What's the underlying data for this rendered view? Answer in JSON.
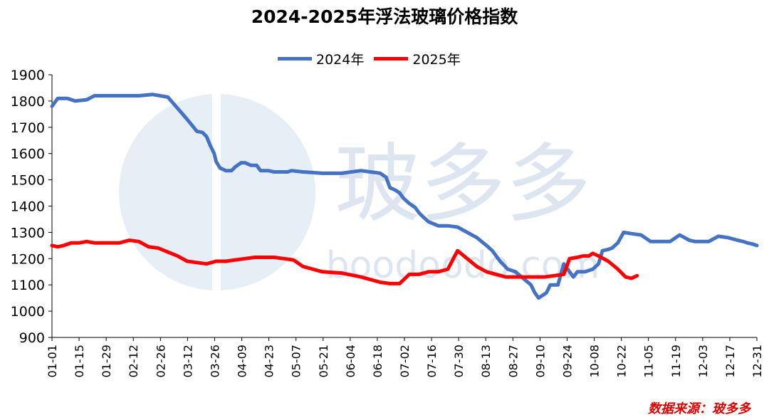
{
  "chart_data": {
    "type": "line",
    "title": "2024-2025年浮法玻璃价格指数",
    "xlabel": "",
    "ylabel": "",
    "ylim": [
      900,
      1900
    ],
    "yticks": [
      900,
      1000,
      1100,
      1200,
      1300,
      1400,
      1500,
      1600,
      1700,
      1800,
      1900
    ],
    "x_tick_labels": [
      "01-01",
      "01-15",
      "01-29",
      "02-12",
      "02-26",
      "03-12",
      "03-26",
      "04-09",
      "04-23",
      "05-07",
      "05-21",
      "06-04",
      "06-18",
      "07-02",
      "07-16",
      "07-30",
      "08-13",
      "08-27",
      "09-10",
      "09-24",
      "10-08",
      "10-22",
      "11-05",
      "11-19",
      "12-03",
      "12-17",
      "12-31"
    ],
    "x_range_days": [
      0,
      365
    ],
    "grid": false,
    "legend_position": "top-center",
    "series": [
      {
        "name": "2024年",
        "color": "#4472c4",
        "x": [
          0,
          3,
          8,
          12,
          18,
          22,
          26,
          33,
          40,
          45,
          52,
          60,
          70,
          75,
          78,
          80,
          82,
          84,
          85,
          87,
          90,
          93,
          95,
          98,
          100,
          103,
          106,
          108,
          110,
          112,
          115,
          118,
          122,
          124,
          130,
          140,
          150,
          160,
          170,
          173,
          175,
          178,
          180,
          182,
          185,
          188,
          190,
          192,
          195,
          200,
          205,
          210,
          215,
          220,
          225,
          228,
          232,
          236,
          240,
          244,
          248,
          250,
          252,
          254,
          256,
          258,
          260,
          262,
          265,
          268,
          270,
          272,
          276,
          280,
          283,
          285,
          288,
          290,
          293,
          296,
          300,
          305,
          310,
          315,
          320,
          325,
          330,
          333,
          335,
          340,
          345,
          350,
          355,
          358,
          360,
          363,
          365
        ],
        "values": [
          1780,
          1810,
          1810,
          1800,
          1805,
          1820,
          1820,
          1820,
          1820,
          1820,
          1825,
          1815,
          1730,
          1685,
          1680,
          1665,
          1630,
          1600,
          1570,
          1545,
          1535,
          1535,
          1550,
          1565,
          1565,
          1555,
          1555,
          1535,
          1535,
          1535,
          1530,
          1530,
          1530,
          1535,
          1530,
          1525,
          1525,
          1535,
          1525,
          1510,
          1470,
          1460,
          1450,
          1430,
          1410,
          1395,
          1375,
          1360,
          1340,
          1325,
          1325,
          1320,
          1300,
          1280,
          1250,
          1230,
          1190,
          1160,
          1150,
          1125,
          1100,
          1070,
          1050,
          1060,
          1070,
          1100,
          1100,
          1100,
          1180,
          1150,
          1130,
          1150,
          1150,
          1160,
          1180,
          1230,
          1235,
          1240,
          1260,
          1300,
          1295,
          1290,
          1265,
          1265,
          1265,
          1290,
          1270,
          1265,
          1265,
          1265,
          1285,
          1280,
          1270,
          1265,
          1260,
          1255,
          1250
        ]
      },
      {
        "name": "2025年",
        "color": "#ff0000",
        "x": [
          0,
          3,
          6,
          10,
          14,
          18,
          22,
          26,
          30,
          35,
          40,
          45,
          50,
          55,
          60,
          65,
          70,
          75,
          80,
          85,
          90,
          95,
          100,
          105,
          110,
          115,
          120,
          125,
          130,
          140,
          150,
          160,
          170,
          175,
          180,
          185,
          190,
          195,
          200,
          205,
          210,
          215,
          220,
          225,
          230,
          235,
          240,
          242,
          245,
          248,
          250,
          252,
          255,
          260,
          265,
          268,
          272,
          275,
          278,
          280,
          283,
          288,
          293,
          297,
          300,
          303
        ],
        "values": [
          1250,
          1245,
          1250,
          1260,
          1260,
          1265,
          1260,
          1260,
          1260,
          1260,
          1270,
          1265,
          1245,
          1240,
          1225,
          1210,
          1190,
          1185,
          1180,
          1190,
          1190,
          1195,
          1200,
          1205,
          1205,
          1205,
          1200,
          1195,
          1170,
          1150,
          1145,
          1130,
          1110,
          1105,
          1105,
          1140,
          1140,
          1150,
          1150,
          1160,
          1230,
          1200,
          1170,
          1150,
          1140,
          1130,
          1130,
          1130,
          1130,
          1130,
          1130,
          1130,
          1130,
          1135,
          1140,
          1200,
          1205,
          1210,
          1210,
          1220,
          1210,
          1190,
          1160,
          1130,
          1125,
          1135
        ]
      }
    ]
  },
  "legend": {
    "items": [
      "2024年",
      "2025年"
    ]
  },
  "watermark": {
    "glyph": "玻多多",
    "site": "boodoodo.com"
  },
  "source": "数据来源：玻多多"
}
